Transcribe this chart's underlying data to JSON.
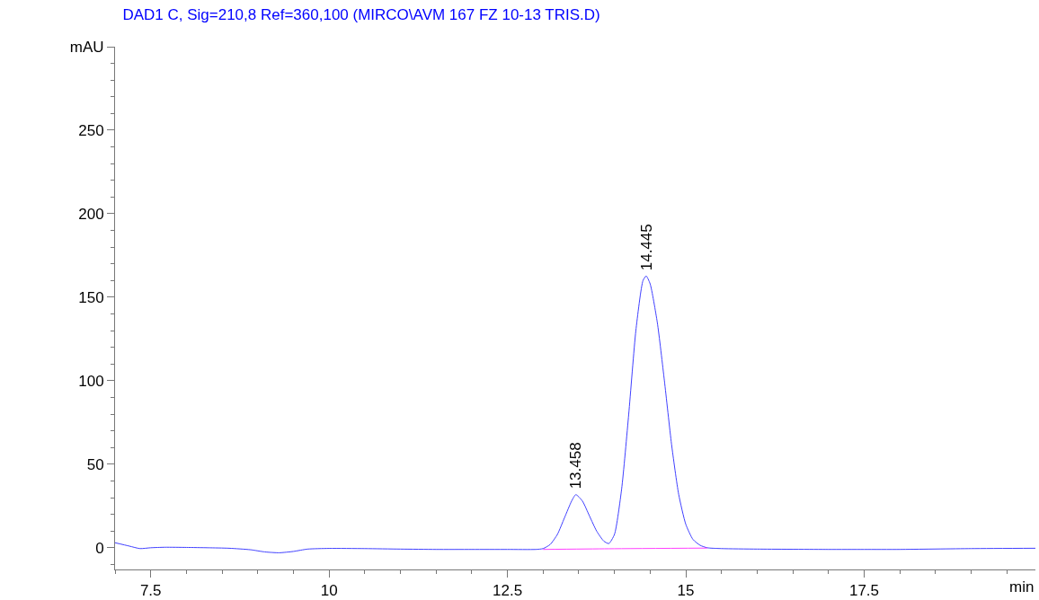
{
  "chart_data": {
    "type": "line",
    "title": "DAD1 C, Sig=210,8 Ref=360,100 (MIRCO\\AVM 167 FZ 10-13 TRIS.D)",
    "xlim": [
      7,
      19.9
    ],
    "xticks": [
      7.5,
      10,
      12.5,
      15,
      17.5
    ],
    "xlabel": "min",
    "ylim": [
      -13,
      300
    ],
    "yticks": [
      0,
      50,
      100,
      150,
      200,
      250,
      {
        "value": 300,
        "label": "mAU"
      }
    ],
    "series": [
      {
        "color": "#4040ff",
        "x": [
          7.0,
          7.2,
          7.35,
          7.5,
          7.7,
          8.0,
          8.3,
          8.6,
          8.9,
          9.1,
          9.3,
          9.5,
          9.7,
          10,
          10.5,
          11,
          11.5,
          12,
          12.5,
          12.9,
          13.0,
          13.1,
          13.2,
          13.3,
          13.4,
          13.458,
          13.55,
          13.65,
          13.75,
          13.85,
          13.92,
          14.0,
          14.1,
          14.2,
          14.3,
          14.4,
          14.445,
          14.5,
          14.6,
          14.7,
          14.8,
          14.9,
          15.0,
          15.1,
          15.2,
          15.3,
          15.5,
          16,
          17,
          17.5,
          18,
          19,
          19.9
        ],
        "values": [
          3,
          1,
          -0.5,
          0,
          0.3,
          0.2,
          0,
          -0.3,
          -1.2,
          -2.5,
          -3,
          -2.2,
          -0.8,
          -0.4,
          -0.5,
          -0.8,
          -1,
          -1,
          -1,
          -1,
          -0.5,
          2,
          8,
          18,
          28,
          31.8,
          28,
          19,
          10,
          4,
          2.5,
          8,
          35,
          80,
          130,
          160,
          162.7,
          158,
          135,
          100,
          62,
          32,
          14,
          5,
          1.5,
          0,
          -0.5,
          -0.8,
          -1,
          -1,
          -1,
          -0.5,
          -0.3
        ]
      },
      {
        "color": "#ff40ff",
        "x": [
          13.0,
          13.92,
          15.3
        ],
        "values": [
          -1,
          -0.6,
          -0.2
        ]
      }
    ],
    "annotations": [
      {
        "text": "13.458",
        "x": 13.458,
        "y": 31.8
      },
      {
        "text": "14.445",
        "x": 14.445,
        "y": 162.7
      }
    ]
  }
}
